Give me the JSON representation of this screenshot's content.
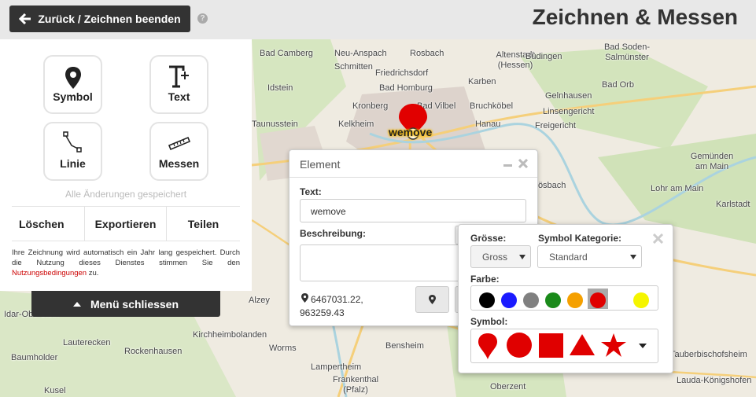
{
  "header": {
    "back_button": "Zurück / Zeichnen beenden",
    "help": "?",
    "title": "Zeichnen & Messen"
  },
  "tools": [
    "Symbol",
    "Text",
    "Linie",
    "Messen"
  ],
  "status": "Alle Änderungen gespeichert",
  "actions": [
    "Löschen",
    "Exportieren",
    "Teilen"
  ],
  "notice": {
    "text": "Ihre Zeichnung wird automatisch ein Jahr lang gespeichert. Durch die Nutzung dieses Dienstes stimmen Sie den",
    "link": "Nutzungsbedingungen",
    "suffix": "zu."
  },
  "menu_close": "Menü schliessen",
  "marker_label": "wemove",
  "element_popup": {
    "title": "Element",
    "text_label": "Text:",
    "text_value": "wemove",
    "description_label": "Beschreibung:",
    "coordinates": "6467031.22, 963259.43"
  },
  "symbol_popup": {
    "size_label": "Grösse:",
    "size_value": "Gross",
    "category_label": "Symbol Kategorie:",
    "category_value": "Standard",
    "color_label": "Farbe:",
    "symbol_label": "Symbol:"
  },
  "map_labels": [
    "Bad Camberg",
    "Neu-Anspach",
    "Rosbach",
    "Altenstadt (Hessen)",
    "Büdingen",
    "Bad Soden-Salmünster",
    "Schmitten",
    "Friedrichsdorf",
    "Idstein",
    "Bad Homburg",
    "Karben",
    "Bad Orb",
    "Gelnhausen",
    "Kronberg",
    "Bad Vilbel",
    "Bruchköbel",
    "Linsengericht",
    "Taunusstein",
    "Kelkheim",
    "Hanau",
    "Freigericht",
    "Gemünden am Main",
    "Hösbach",
    "Lohr am Main",
    "Karlstadt",
    "Alzey",
    "Idar-Oberstein",
    "Kirchheimbolanden",
    "Lauterecken",
    "Rockenhausen",
    "Worms",
    "Bensheim",
    "Baumholder",
    "Lampertheim",
    "Tauberbischofsheim",
    "Kusel",
    "Frankenthal (Pfalz)",
    "Oberzent",
    "Lauda-Königshofen"
  ]
}
